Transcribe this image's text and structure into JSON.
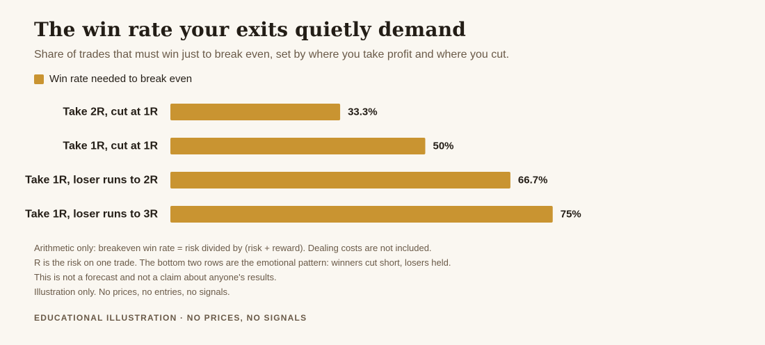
{
  "chart_data": {
    "type": "bar",
    "orientation": "horizontal",
    "title": "The win rate your exits quietly demand",
    "subtitle": "Share of trades that must win just to break even, set by where you take profit and where you cut.",
    "categories": [
      "Take 2R, cut at 1R",
      "Take 1R, cut at 1R",
      "Take 1R, loser runs to 2R",
      "Take 1R, loser runs to 3R"
    ],
    "series": [
      {
        "name": "Win rate needed to break even",
        "values": [
          33.3,
          50,
          66.7,
          75
        ],
        "labels": [
          "33.3%",
          "50%",
          "66.7%",
          "75%"
        ],
        "color": "#c99431"
      }
    ],
    "xlim": [
      0,
      100
    ],
    "grid": false,
    "legend_position": "top-left"
  },
  "notes": [
    "Arithmetic only: breakeven win rate = risk divided by (risk + reward). Dealing costs are not included.",
    "R is the risk on one trade. The bottom two rows are the emotional pattern: winners cut short, losers held.",
    "This is not a forecast and not a claim about anyone's results.",
    "Illustration only. No prices, no entries, no signals."
  ],
  "footer": "EDUCATIONAL ILLUSTRATION · NO PRICES, NO SIGNALS"
}
